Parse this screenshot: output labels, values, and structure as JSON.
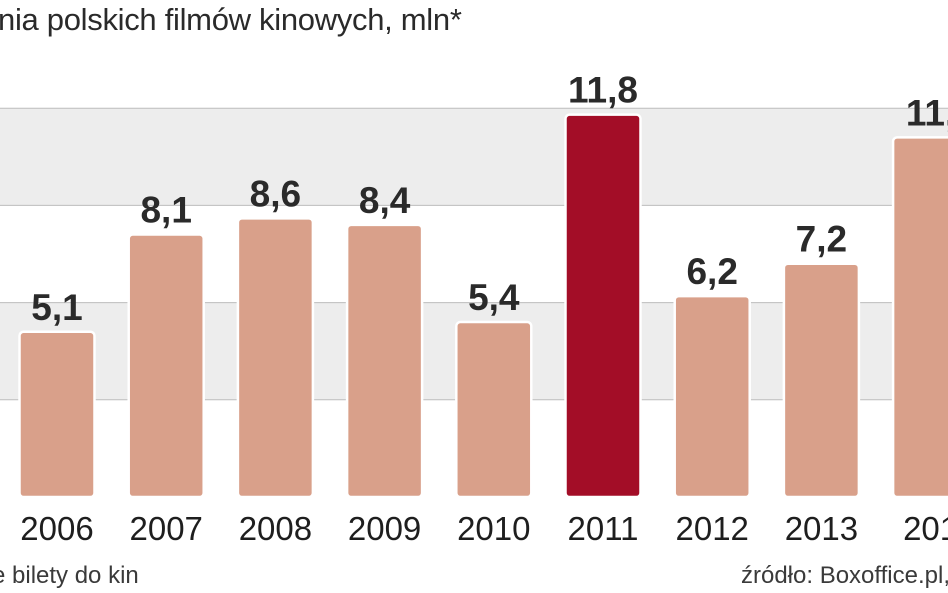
{
  "chart_data": {
    "type": "bar",
    "title": "nia polskich filmów kinowych, mln*",
    "categories": [
      "2006",
      "2007",
      "2008",
      "2009",
      "2010",
      "2011",
      "2012",
      "2013",
      "201"
    ],
    "values": [
      5.1,
      8.1,
      8.6,
      8.4,
      5.4,
      11.8,
      6.2,
      7.2,
      11.1
    ],
    "value_labels": [
      "5,1",
      "8,1",
      "8,6",
      "8,4",
      "5,4",
      "11,8",
      "6,2",
      "7,2",
      "11,"
    ],
    "highlight_category": "2011",
    "ylim": [
      0,
      12
    ],
    "grid": true,
    "colors": {
      "bar": "#d9a08a",
      "highlight": "#a30d27",
      "grid_band": "#ededed",
      "grid_line": "#bdbdbd"
    }
  },
  "footnote": "e bilety do kin",
  "source": "źródło: Boxoffice.pl,"
}
